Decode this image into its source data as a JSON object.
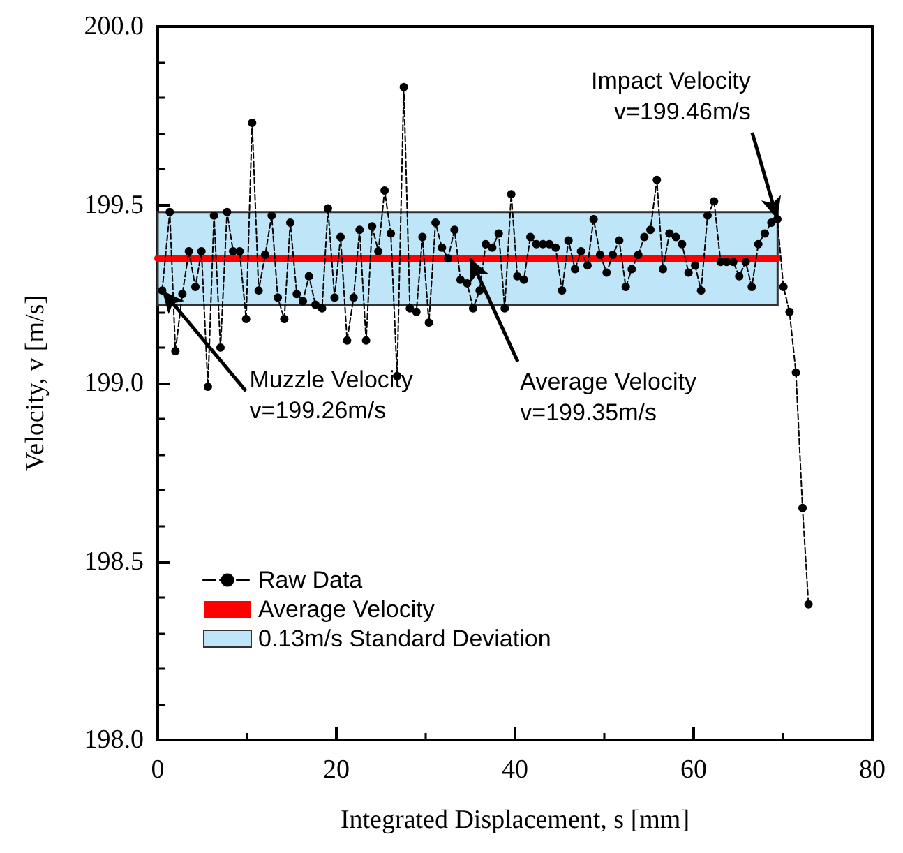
{
  "chart_data": {
    "type": "line",
    "xlabel": "Integrated Displacement, s [mm]",
    "ylabel": "Velocity, v [m/s]",
    "xlim": [
      0,
      80
    ],
    "xticks": [
      0,
      20,
      40,
      60,
      80
    ],
    "ylim": [
      198,
      200
    ],
    "yticks": [
      {
        "value": 198,
        "label": "198.0"
      },
      {
        "value": 198.5,
        "label": "198.5"
      },
      {
        "value": 199,
        "label": "199.0"
      },
      {
        "value": 199.5,
        "label": "199.5"
      },
      {
        "value": 200,
        "label": "200.0"
      }
    ],
    "grid": false,
    "legend": "bottom left",
    "series": [
      {
        "name": "Raw Data",
        "color": "#000000",
        "marker": "circle",
        "line_style": "dashed",
        "x": [
          0.5,
          1.35,
          1.98,
          2.76,
          3.49,
          4.22,
          4.9,
          5.62,
          6.3,
          7.03,
          7.76,
          8.44,
          9.17,
          9.9,
          10.57,
          11.3,
          12.03,
          12.76,
          13.44,
          14.17,
          14.84,
          15.57,
          16.25,
          16.93,
          17.66,
          18.4,
          19.06,
          19.8,
          20.47,
          21.2,
          21.93,
          22.6,
          23.33,
          24.0,
          24.7,
          25.4,
          26.1,
          26.8,
          27.55,
          28.23,
          28.96,
          29.64,
          30.36,
          31.1,
          31.82,
          32.5,
          33.23,
          33.9,
          34.64,
          35.31,
          36.04,
          36.72,
          37.45,
          38.18,
          38.85,
          39.58,
          40.26,
          40.99,
          41.72,
          42.39,
          43.12,
          43.85,
          44.55,
          45.26,
          45.99,
          46.72,
          47.39,
          48.12,
          48.8,
          49.53,
          50.26,
          50.94,
          51.67,
          52.4,
          53.07,
          53.8,
          54.48,
          55.16,
          55.88,
          56.56,
          57.29,
          58.02,
          58.7,
          59.43,
          60.16,
          60.83,
          61.56,
          62.29,
          63.02,
          63.7,
          64.43,
          65.1,
          65.83,
          66.51,
          67.24,
          67.97,
          68.7,
          69.37,
          70.05,
          70.73,
          71.45,
          72.19,
          72.86
        ],
        "values": [
          199.26,
          199.48,
          199.09,
          199.25,
          199.37,
          199.27,
          199.37,
          198.99,
          199.47,
          199.1,
          199.48,
          199.37,
          199.37,
          199.18,
          199.73,
          199.26,
          199.36,
          199.47,
          199.24,
          199.18,
          199.45,
          199.25,
          199.23,
          199.3,
          199.22,
          199.21,
          199.49,
          199.24,
          199.41,
          199.12,
          199.24,
          199.43,
          199.12,
          199.44,
          199.37,
          199.54,
          199.42,
          199.02,
          199.83,
          199.21,
          199.2,
          199.41,
          199.17,
          199.45,
          199.38,
          199.35,
          199.43,
          199.29,
          199.28,
          199.21,
          199.26,
          199.39,
          199.38,
          199.42,
          199.21,
          199.53,
          199.3,
          199.29,
          199.41,
          199.39,
          199.39,
          199.39,
          199.38,
          199.26,
          199.4,
          199.32,
          199.37,
          199.33,
          199.46,
          199.36,
          199.31,
          199.36,
          199.4,
          199.27,
          199.32,
          199.36,
          199.41,
          199.43,
          199.57,
          199.32,
          199.42,
          199.41,
          199.39,
          199.31,
          199.33,
          199.26,
          199.47,
          199.51,
          199.34,
          199.34,
          199.34,
          199.3,
          199.34,
          199.27,
          199.39,
          199.42,
          199.45,
          199.46,
          199.27,
          199.2,
          199.03,
          198.65,
          198.38
        ]
      },
      {
        "name": "Average Velocity",
        "color": "#ff0000",
        "marker": "none",
        "line_style": "solid",
        "x": [
          0,
          69.4
        ],
        "values": [
          199.35,
          199.35
        ]
      }
    ],
    "bands": [
      {
        "axis": "y",
        "from": 199.22,
        "to": 199.48,
        "color": "#bfe6f8",
        "label": "0.13m/s Standard Deviation"
      }
    ],
    "annotations": [
      {
        "text": "Muzzle Velocity\nv=199.26m/s",
        "x": 0.5,
        "y": 199.26
      },
      {
        "text": "Average Velocity\nv=199.35m/s",
        "x": 35,
        "y": 199.35
      },
      {
        "text": "Impact Velocity\nv=199.46m/s",
        "x": 69.37,
        "y": 199.46
      }
    ]
  }
}
